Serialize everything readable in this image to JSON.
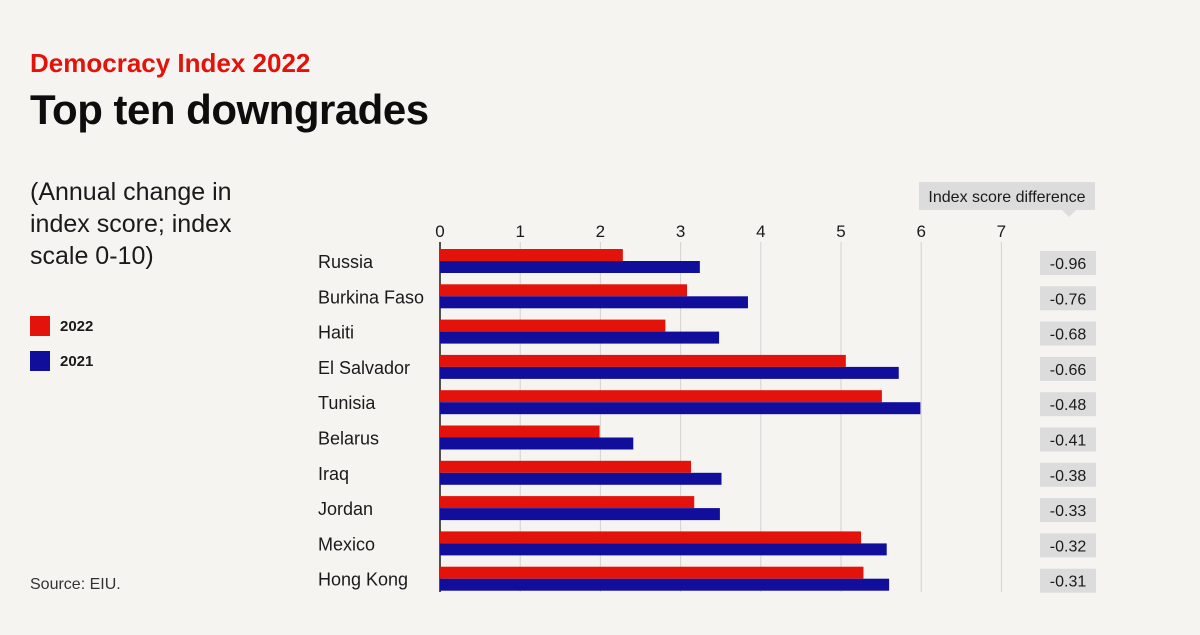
{
  "header": {
    "super_title": "Democracy Index 2022",
    "title": "Top ten downgrades",
    "subtitle": "(Annual change in index score; index scale 0-10)"
  },
  "legend": {
    "items": [
      {
        "label": "2022",
        "color": "#e3120b"
      },
      {
        "label": "2021",
        "color": "#120e9c"
      }
    ]
  },
  "source": "Source: EIU.",
  "chart_data": {
    "type": "bar",
    "orientation": "horizontal",
    "categories": [
      "Russia",
      "Burkina Faso",
      "Haiti",
      "El Salvador",
      "Tunisia",
      "Belarus",
      "Iraq",
      "Jordan",
      "Mexico",
      "Hong Kong"
    ],
    "series": [
      {
        "name": "2022",
        "color": "#e3120b",
        "values": [
          2.28,
          3.08,
          2.81,
          5.06,
          5.51,
          1.99,
          3.13,
          3.17,
          5.25,
          5.28
        ]
      },
      {
        "name": "2021",
        "color": "#120e9c",
        "values": [
          3.24,
          3.84,
          3.48,
          5.72,
          5.99,
          2.41,
          3.51,
          3.49,
          5.57,
          5.6
        ]
      }
    ],
    "xlim": [
      0,
      7
    ],
    "xticks": [
      "0",
      "1",
      "2",
      "3",
      "4",
      "5",
      "6",
      "7"
    ],
    "difference_header": "Index score difference",
    "differences": [
      "-0.96",
      "-0.76",
      "-0.68",
      "-0.66",
      "-0.48",
      "-0.41",
      "-0.38",
      "-0.33",
      "-0.32",
      "-0.31"
    ],
    "grid": true
  }
}
